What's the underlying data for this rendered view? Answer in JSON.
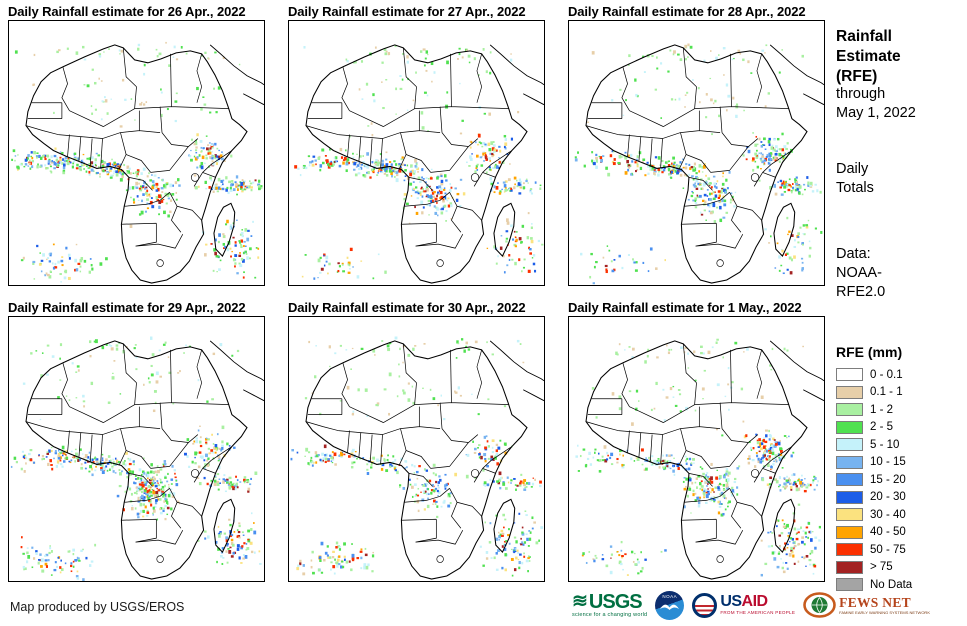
{
  "panels": [
    {
      "title": "Daily Rainfall estimate for 26 Apr., 2022"
    },
    {
      "title": "Daily Rainfall estimate for 27 Apr., 2022"
    },
    {
      "title": "Daily Rainfall estimate for 28 Apr., 2022"
    },
    {
      "title": "Daily Rainfall estimate for 29 Apr., 2022"
    },
    {
      "title": "Daily Rainfall estimate for 30 Apr., 2022"
    },
    {
      "title": "Daily Rainfall estimate for 1 May., 2022"
    }
  ],
  "sidebar": {
    "title": "Rainfall Estimate (RFE)",
    "through_line1": "through",
    "through_line2": "May 1, 2022",
    "totals_line1": "Daily",
    "totals_line2": "Totals",
    "data_line1": "Data:",
    "data_line2": "NOAA-",
    "data_line3": "RFE2.0"
  },
  "legend": {
    "title": "RFE (mm)",
    "items": [
      {
        "label": "0 - 0.1",
        "color": "#FFFFFF"
      },
      {
        "label": "0.1 - 1",
        "color": "#E7CFA9"
      },
      {
        "label": "1 - 2",
        "color": "#A9F0A1"
      },
      {
        "label": "2 - 5",
        "color": "#50E150"
      },
      {
        "label": "5 - 10",
        "color": "#C5F2FA"
      },
      {
        "label": "10 - 15",
        "color": "#77B3F0"
      },
      {
        "label": "15 - 20",
        "color": "#4A90F0"
      },
      {
        "label": "20 - 30",
        "color": "#1C5DE8"
      },
      {
        "label": "30 - 40",
        "color": "#FBE27F"
      },
      {
        "label": "40 - 50",
        "color": "#FFA400"
      },
      {
        "label": "50 - 75",
        "color": "#FB3000"
      },
      {
        "label": "> 75",
        "color": "#A32222"
      },
      {
        "label": "No Data",
        "color": "#A4A4A4"
      }
    ]
  },
  "footer": {
    "credit": "Map produced by USGS/EROS",
    "usgs": {
      "name": "USGS",
      "tagline": "science for a changing world"
    },
    "noaa": {
      "name": "NOAA"
    },
    "usaid": {
      "us": "US",
      "aid": "AID",
      "tagline": "FROM THE AMERICAN PEOPLE"
    },
    "fewsnet": {
      "name": "FEWS NET",
      "tagline": "FAMINE EARLY WARNING SYSTEMS NETWORK"
    }
  },
  "colors": {
    "usgs_green": "#006F41",
    "noaa_navy": "#0C2E6F",
    "noaa_blue": "#2A8CD4",
    "usaid_blue": "#002F6C",
    "usaid_red": "#BA0C2F",
    "fews_orange": "#C75B1E",
    "fews_globe_green": "#1F7A34"
  }
}
